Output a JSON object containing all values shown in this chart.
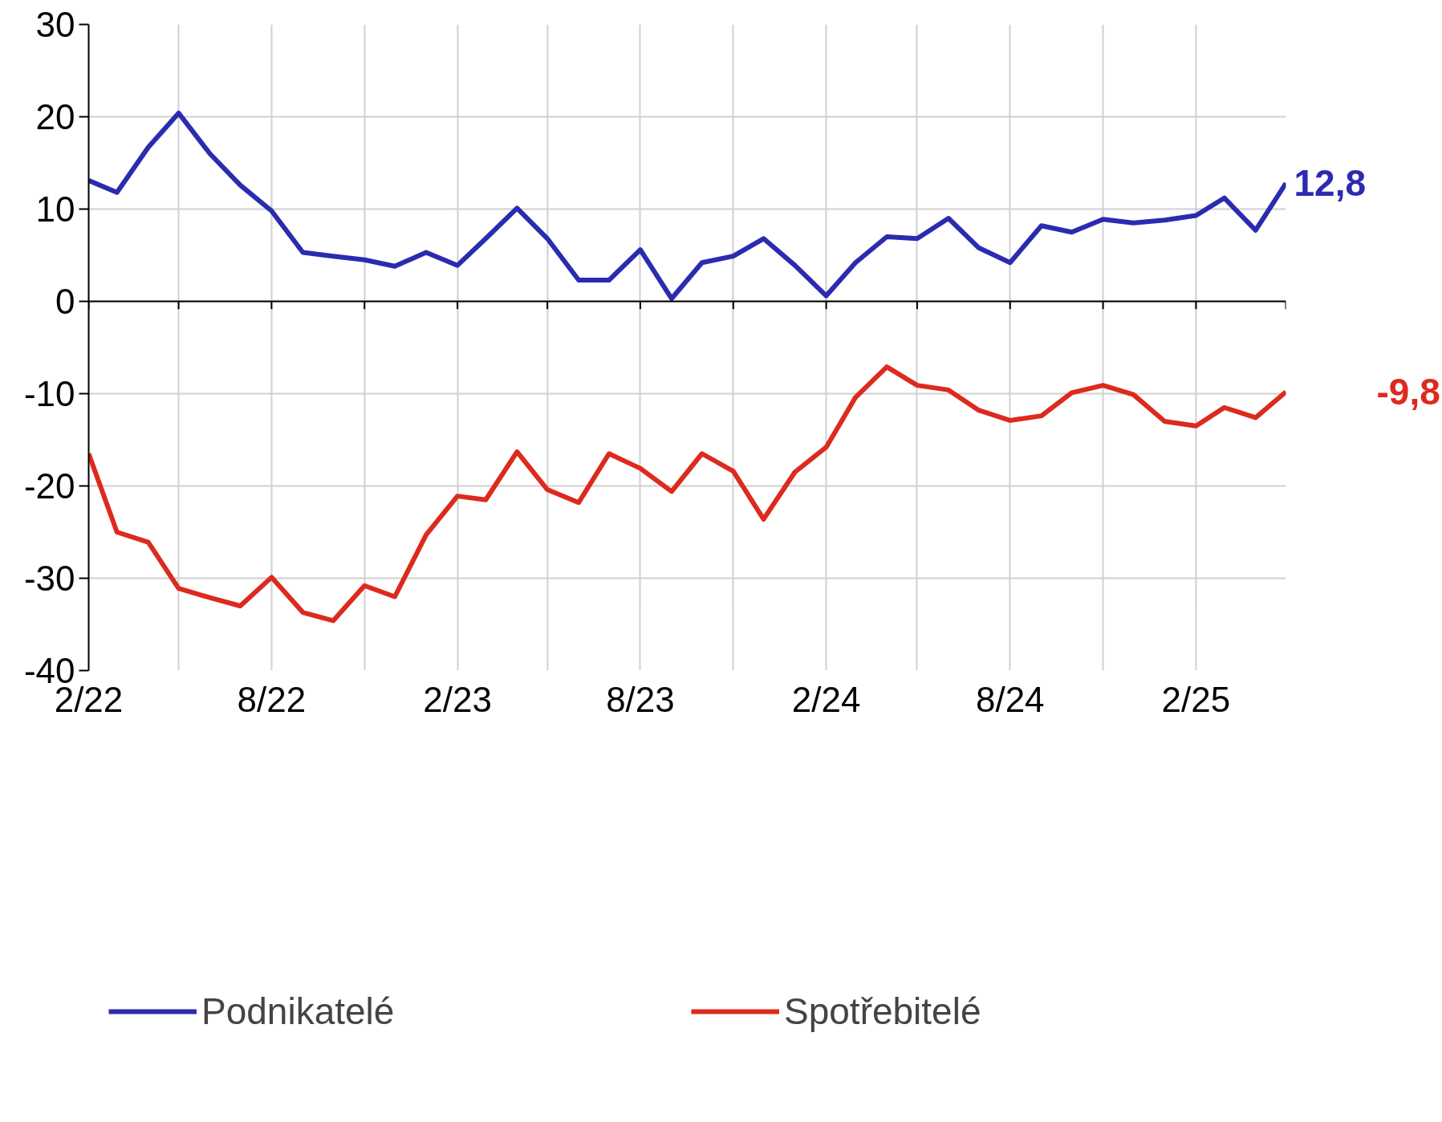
{
  "chart_data": {
    "type": "line",
    "x": [
      "2022-02",
      "2022-03",
      "2022-04",
      "2022-05",
      "2022-06",
      "2022-07",
      "2022-08",
      "2022-09",
      "2022-10",
      "2022-11",
      "2022-12",
      "2023-01",
      "2023-02",
      "2023-03",
      "2023-04",
      "2023-05",
      "2023-06",
      "2023-07",
      "2023-08",
      "2023-09",
      "2023-10",
      "2023-11",
      "2023-12",
      "2024-01",
      "2024-02",
      "2024-03",
      "2024-04",
      "2024-05",
      "2024-06",
      "2024-07",
      "2024-08",
      "2024-09",
      "2024-10",
      "2024-11",
      "2024-12",
      "2025-01",
      "2025-02",
      "2025-03",
      "2025-04",
      "2025-05"
    ],
    "series": [
      {
        "name": "Podnikatelé",
        "color": "#2b2bb0",
        "values": [
          13.1,
          11.8,
          16.7,
          20.4,
          16.0,
          12.6,
          9.8,
          5.3,
          4.9,
          4.5,
          3.8,
          5.3,
          3.9,
          6.8,
          10.1,
          6.8,
          2.3,
          2.3,
          5.6,
          0.3,
          4.2,
          4.9,
          6.8,
          3.9,
          0.6,
          4.2,
          7.0,
          6.8,
          9.0,
          5.8,
          4.2,
          8.2,
          7.5,
          8.9,
          8.5,
          8.8,
          9.3,
          11.2,
          7.7,
          12.8
        ]
      },
      {
        "name": "Spotřebitelé",
        "color": "#dd2a1e",
        "values": [
          -16.5,
          -25.0,
          -26.1,
          -31.1,
          -32.1,
          -33.0,
          -29.9,
          -33.7,
          -34.6,
          -30.8,
          -32.0,
          -25.3,
          -21.1,
          -21.5,
          -16.3,
          -20.4,
          -21.8,
          -16.5,
          -18.1,
          -20.6,
          -16.5,
          -18.4,
          -23.6,
          -18.5,
          -15.8,
          -10.4,
          -7.1,
          -9.1,
          -9.6,
          -11.8,
          -12.9,
          -12.4,
          -9.9,
          -9.1,
          -10.1,
          -13.0,
          -13.5,
          -11.5,
          -12.6,
          -9.8
        ]
      }
    ],
    "annotations": [
      {
        "text": "12,8",
        "x": "2025-05",
        "y": 12.8
      },
      {
        "text": "-9,8",
        "x": "2025-05",
        "y": -9.8
      }
    ],
    "xlim": [
      "2022-02",
      "2025-05"
    ],
    "xticks": [
      {
        "value": "2022-02",
        "label": "2/22"
      },
      {
        "value": "2022-05",
        "label": null
      },
      {
        "value": "2022-08",
        "label": "8/22"
      },
      {
        "value": "2022-11",
        "label": null
      },
      {
        "value": "2023-02",
        "label": "2/23"
      },
      {
        "value": "2023-05",
        "label": null
      },
      {
        "value": "2023-08",
        "label": "8/23"
      },
      {
        "value": "2023-11",
        "label": null
      },
      {
        "value": "2024-02",
        "label": "2/24"
      },
      {
        "value": "2024-05",
        "label": null
      },
      {
        "value": "2024-08",
        "label": "8/24"
      },
      {
        "value": "2024-11",
        "label": null
      },
      {
        "value": "2025-02",
        "label": "2/25"
      },
      {
        "value": "2025-05",
        "label": null
      }
    ],
    "ylim": [
      -40,
      30
    ],
    "yticks": [
      -40,
      -30,
      -20,
      -10,
      0,
      10,
      20,
      30
    ],
    "grid": true,
    "legend": "bottom",
    "line_style": "solid",
    "marker": "none"
  }
}
